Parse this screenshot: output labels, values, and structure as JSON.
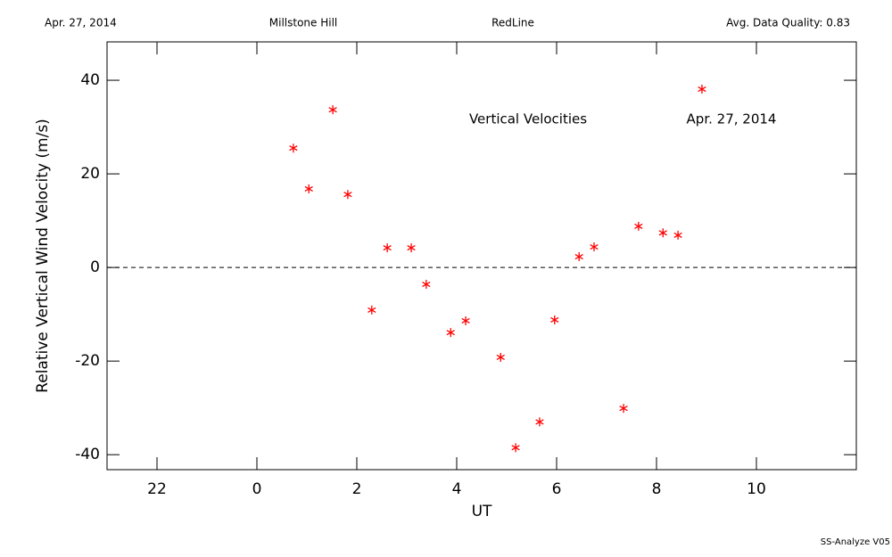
{
  "chart_data": {
    "type": "scatter",
    "header": [
      "Apr. 27, 2014",
      "Millstone Hill",
      "RedLine",
      "Avg. Data Quality: 0.83"
    ],
    "annotations": [
      "Vertical Velocities",
      "Apr. 27, 2014"
    ],
    "footer": "SS-Analyze V05",
    "x_label": "UT",
    "y_label": "Relative Vertical Wind Velocity (m/s)",
    "color": "#ff0000",
    "marker": "asterisk",
    "zero_line": 0,
    "xlim": [
      -3,
      12
    ],
    "ylim": [
      -43.2,
      48.2
    ],
    "xticks": [
      {
        "value": -2,
        "label": "22"
      },
      0,
      2,
      4,
      6,
      8,
      10
    ],
    "yticks": [
      -40,
      -20,
      0,
      20,
      40
    ],
    "x": [
      0.73,
      1.04,
      1.52,
      1.82,
      2.3,
      2.61,
      3.09,
      3.39,
      3.88,
      4.18,
      4.88,
      5.18,
      5.66,
      5.96,
      6.45,
      6.75,
      7.34,
      7.64,
      8.13,
      8.43,
      8.91
    ],
    "values": [
      25.5,
      16.8,
      33.7,
      15.6,
      -9.1,
      4.2,
      4.2,
      -3.6,
      -13.9,
      -11.4,
      -19.2,
      -38.5,
      -33.0,
      -11.2,
      2.3,
      4.4,
      -30.1,
      8.8,
      7.4,
      6.9,
      38.1
    ]
  }
}
